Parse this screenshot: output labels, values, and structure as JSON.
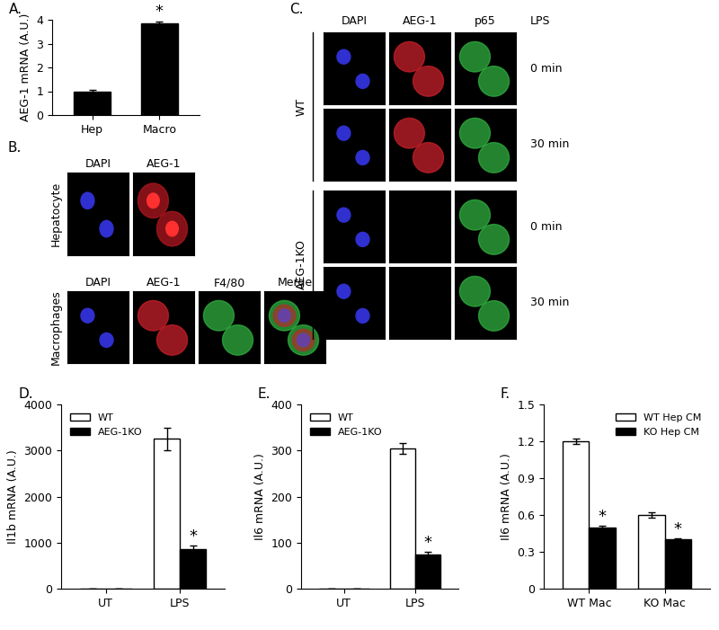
{
  "chart_data": [
    {
      "type": "bar",
      "title": "A.",
      "y_label": "AEG-1 mRNA (A.U.)",
      "categories": [
        "Hep",
        "Macro"
      ],
      "values": [
        1.0,
        3.85
      ],
      "errors": [
        0.04,
        0.08
      ],
      "color": "#000000",
      "ylim": [
        0,
        4
      ],
      "yticks": [
        0,
        1,
        2,
        3,
        4
      ],
      "annotations": [
        {
          "text": "*",
          "category": "Macro"
        }
      ]
    },
    {
      "type": "bar",
      "title": "D.",
      "y_label": "Il1b mRNA (A.U.)",
      "categories": [
        "UT",
        "LPS"
      ],
      "series": [
        {
          "name": "WT",
          "color": "#ffffff",
          "values": [
            0,
            3250
          ],
          "errors": [
            0,
            250
          ]
        },
        {
          "name": "AEG-1KO",
          "color": "#000000",
          "values": [
            0,
            850
          ],
          "errors": [
            0,
            80
          ]
        }
      ],
      "ylim": [
        0,
        4000
      ],
      "yticks": [
        0,
        1000,
        2000,
        3000,
        4000
      ],
      "legend": "upper left",
      "annotations": [
        {
          "text": "*",
          "category": "LPS",
          "series": "AEG-1KO"
        }
      ]
    },
    {
      "type": "bar",
      "title": "E.",
      "y_label": "Il6 mRNA (A.U.)",
      "categories": [
        "UT",
        "LPS"
      ],
      "series": [
        {
          "name": "WT",
          "color": "#ffffff",
          "values": [
            0,
            305
          ],
          "errors": [
            0,
            12
          ]
        },
        {
          "name": "AEG-1KO",
          "color": "#000000",
          "values": [
            0,
            75
          ],
          "errors": [
            0,
            5
          ]
        }
      ],
      "ylim": [
        0,
        400
      ],
      "yticks": [
        0,
        100,
        200,
        300,
        400
      ],
      "legend": "upper left",
      "annotations": [
        {
          "text": "*",
          "category": "LPS",
          "series": "AEG-1KO"
        }
      ]
    },
    {
      "type": "bar",
      "title": "F.",
      "y_label": "Il6 mRNA (A.U.)",
      "categories": [
        "WT Mac",
        "KO Mac"
      ],
      "series": [
        {
          "name": "WT Hep CM",
          "color": "#ffffff",
          "values": [
            1.2,
            0.6
          ],
          "errors": [
            0.02,
            0.02
          ]
        },
        {
          "name": "KO Hep CM",
          "color": "#000000",
          "values": [
            0.5,
            0.4
          ],
          "errors": [
            0.01,
            0.01
          ]
        }
      ],
      "ylim": [
        0,
        1.5
      ],
      "yticks": [
        0,
        0.3,
        0.6,
        0.9,
        1.2,
        1.5
      ],
      "legend": "upper right",
      "annotations": [
        {
          "text": "*",
          "category": "WT Mac",
          "series": "KO Hep CM"
        },
        {
          "text": "*",
          "category": "KO Mac",
          "series": "KO Hep CM"
        }
      ]
    }
  ],
  "images": {
    "B": {
      "label": "B.",
      "rows": [
        {
          "name": "Hepatocyte",
          "channels": [
            "DAPI",
            "AEG-1"
          ]
        },
        {
          "name": "Macrophages",
          "channels": [
            "DAPI",
            "AEG-1",
            "F4/80",
            "Merge"
          ]
        }
      ]
    },
    "C": {
      "label": "C.",
      "channels": [
        "DAPI",
        "AEG-1",
        "p65"
      ],
      "condition_label": "LPS",
      "groups": [
        {
          "name": "WT",
          "times": [
            "0 min",
            "30 min"
          ]
        },
        {
          "name": "AEG-1KO",
          "times": [
            "0 min",
            "30 min"
          ]
        }
      ]
    }
  }
}
